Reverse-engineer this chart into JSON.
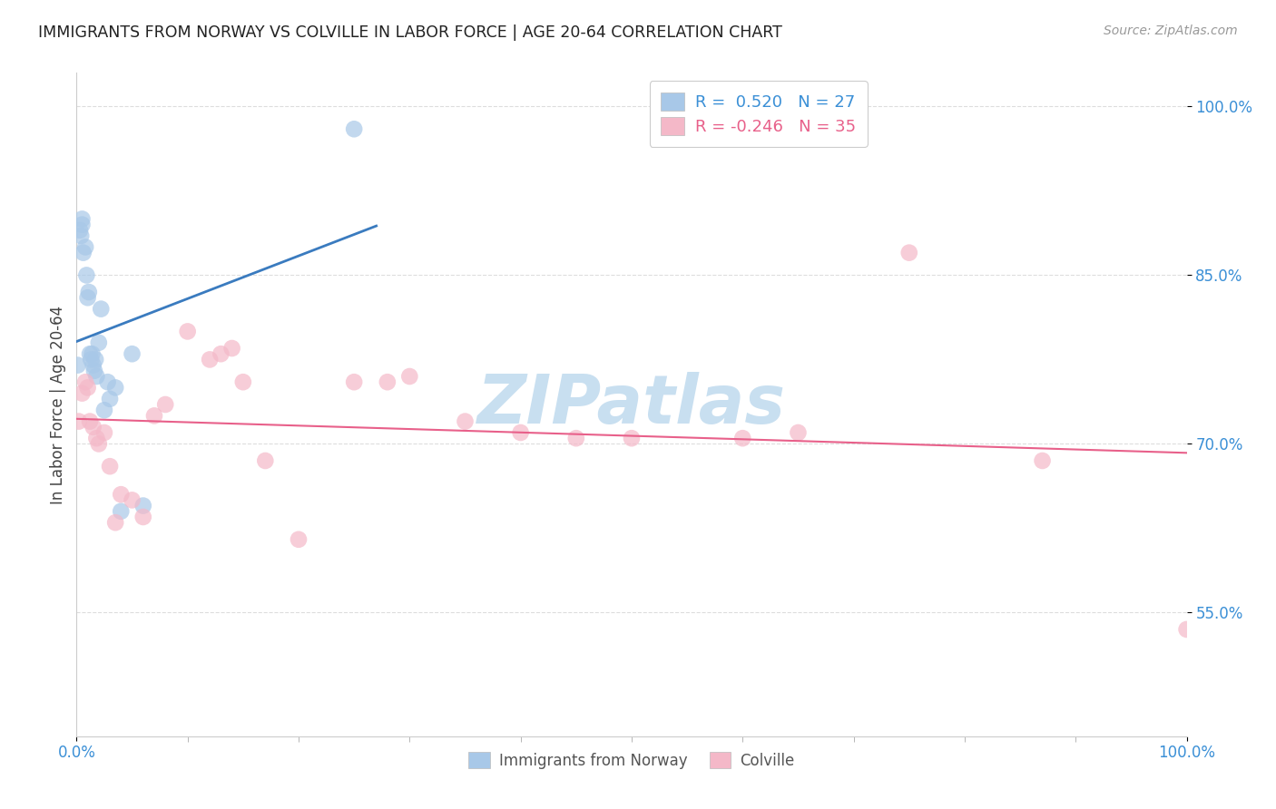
{
  "title": "IMMIGRANTS FROM NORWAY VS COLVILLE IN LABOR FORCE | AGE 20-64 CORRELATION CHART",
  "source": "Source: ZipAtlas.com",
  "ylabel": "In Labor Force | Age 20-64",
  "legend_label1": "Immigrants from Norway",
  "legend_label2": "Colville",
  "R1": 0.52,
  "N1": 27,
  "R2": -0.246,
  "N2": 35,
  "blue_color": "#a8c8e8",
  "pink_color": "#f4b8c8",
  "blue_line_color": "#3a7bbf",
  "pink_line_color": "#e8608a",
  "norway_x": [
    0.1,
    0.3,
    0.4,
    0.5,
    0.5,
    0.6,
    0.8,
    0.9,
    1.0,
    1.1,
    1.2,
    1.3,
    1.4,
    1.5,
    1.6,
    1.7,
    1.8,
    2.0,
    2.2,
    2.5,
    2.8,
    3.0,
    3.5,
    4.0,
    5.0,
    6.0,
    25.0
  ],
  "norway_y": [
    77.0,
    89.0,
    88.5,
    90.0,
    89.5,
    87.0,
    87.5,
    85.0,
    83.0,
    83.5,
    78.0,
    77.5,
    78.0,
    77.0,
    76.5,
    77.5,
    76.0,
    79.0,
    82.0,
    73.0,
    75.5,
    74.0,
    75.0,
    64.0,
    78.0,
    64.5,
    98.0
  ],
  "colville_x": [
    0.2,
    0.5,
    0.8,
    1.0,
    1.2,
    1.5,
    1.8,
    2.0,
    2.5,
    3.0,
    3.5,
    4.0,
    5.0,
    6.0,
    7.0,
    8.0,
    10.0,
    12.0,
    13.0,
    14.0,
    15.0,
    17.0,
    20.0,
    25.0,
    28.0,
    30.0,
    35.0,
    40.0,
    45.0,
    50.0,
    60.0,
    65.0,
    75.0,
    87.0,
    100.0
  ],
  "colville_y": [
    72.0,
    74.5,
    75.5,
    75.0,
    72.0,
    71.5,
    70.5,
    70.0,
    71.0,
    68.0,
    63.0,
    65.5,
    65.0,
    63.5,
    72.5,
    73.5,
    80.0,
    77.5,
    78.0,
    78.5,
    75.5,
    68.5,
    61.5,
    75.5,
    75.5,
    76.0,
    72.0,
    71.0,
    70.5,
    70.5,
    70.5,
    71.0,
    87.0,
    68.5,
    53.5
  ],
  "colville_below": [
    65.0,
    5.0
  ],
  "xlim": [
    0,
    100.0
  ],
  "ylim": [
    44.0,
    103.0
  ],
  "yticks": [
    55.0,
    70.0,
    85.0,
    100.0
  ],
  "ytick_labels": [
    "55.0%",
    "70.0%",
    "85.0%",
    "100.0%"
  ],
  "xticks": [
    0,
    100.0
  ],
  "xtick_labels": [
    "0.0%",
    "100.0%"
  ],
  "watermark": "ZIPatlas",
  "watermark_color": "#c8dff0",
  "background_color": "#ffffff",
  "grid_color": "#dddddd",
  "title_color": "#222222",
  "source_color": "#999999",
  "ylabel_color": "#444444",
  "tick_color": "#3a8fd6"
}
